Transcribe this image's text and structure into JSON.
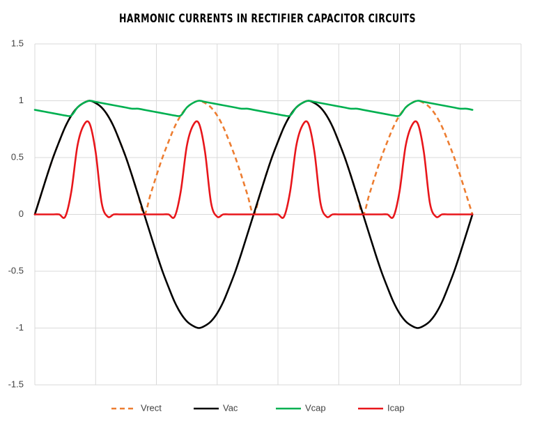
{
  "chart_data": {
    "type": "line",
    "title": "HARMONIC CURRENTS IN RECTIFIER CAPACITOR CIRCUITS",
    "x": [
      0,
      10,
      20,
      30,
      40,
      50,
      60,
      70,
      80,
      90,
      100,
      110,
      120,
      130,
      140,
      150,
      160,
      170,
      180,
      190,
      200,
      210,
      220,
      230,
      240,
      250,
      260,
      270,
      280,
      290,
      300,
      310,
      320,
      330,
      340,
      350,
      360,
      370,
      380,
      390,
      400,
      410,
      420,
      430,
      440,
      450,
      460,
      470,
      480,
      490,
      500,
      510,
      520,
      530,
      540,
      550,
      560,
      570,
      580,
      590,
      600,
      610,
      620,
      630,
      640,
      650,
      660,
      670,
      680,
      690,
      700,
      710,
      720
    ],
    "xlim": [
      0,
      800
    ],
    "xgrid": [
      0,
      100,
      200,
      300,
      400,
      500,
      600,
      700,
      800
    ],
    "ylim": [
      -1.5,
      1.5
    ],
    "yticks": [
      -1.5,
      -1,
      -0.5,
      0,
      0.5,
      1,
      1.5
    ],
    "grid": true,
    "legend": "bottom",
    "series": [
      {
        "name": "Vrect",
        "color": "#ed7d31",
        "dashed": true,
        "values": [
          0,
          0.17,
          0.34,
          0.5,
          0.64,
          0.77,
          0.87,
          0.94,
          0.98,
          1,
          0.98,
          0.94,
          0.87,
          0.77,
          0.64,
          0.5,
          0.34,
          0.17,
          0,
          0.17,
          0.34,
          0.5,
          0.64,
          0.77,
          0.87,
          0.94,
          0.98,
          1,
          0.98,
          0.94,
          0.87,
          0.77,
          0.64,
          0.5,
          0.34,
          0.17,
          0,
          0.17,
          0.34,
          0.5,
          0.64,
          0.77,
          0.87,
          0.94,
          0.98,
          1,
          0.98,
          0.94,
          0.87,
          0.77,
          0.64,
          0.5,
          0.34,
          0.17,
          0,
          0.17,
          0.34,
          0.5,
          0.64,
          0.77,
          0.87,
          0.94,
          0.98,
          1,
          0.98,
          0.94,
          0.87,
          0.77,
          0.64,
          0.5,
          0.34,
          0.17,
          0
        ]
      },
      {
        "name": "Vac",
        "color": "#000000",
        "values": [
          0,
          0.17,
          0.34,
          0.5,
          0.64,
          0.77,
          0.87,
          0.94,
          0.98,
          1,
          0.98,
          0.94,
          0.87,
          0.77,
          0.64,
          0.5,
          0.34,
          0.17,
          0,
          -0.17,
          -0.34,
          -0.5,
          -0.64,
          -0.77,
          -0.87,
          -0.94,
          -0.98,
          -1,
          -0.98,
          -0.94,
          -0.87,
          -0.77,
          -0.64,
          -0.5,
          -0.34,
          -0.17,
          0,
          0.17,
          0.34,
          0.5,
          0.64,
          0.77,
          0.87,
          0.94,
          0.98,
          1,
          0.98,
          0.94,
          0.87,
          0.77,
          0.64,
          0.5,
          0.34,
          0.17,
          0,
          -0.17,
          -0.34,
          -0.5,
          -0.64,
          -0.77,
          -0.87,
          -0.94,
          -0.98,
          -1,
          -0.98,
          -0.94,
          -0.87,
          -0.77,
          -0.64,
          -0.5,
          -0.34,
          -0.17,
          0
        ]
      },
      {
        "name": "Vcap",
        "color": "#00b050",
        "values": [
          0.92,
          0.91,
          0.9,
          0.89,
          0.88,
          0.87,
          0.87,
          0.94,
          0.98,
          1,
          0.99,
          0.98,
          0.97,
          0.96,
          0.95,
          0.94,
          0.93,
          0.93,
          0.92,
          0.91,
          0.9,
          0.89,
          0.88,
          0.87,
          0.87,
          0.94,
          0.98,
          1,
          0.99,
          0.98,
          0.97,
          0.96,
          0.95,
          0.94,
          0.93,
          0.93,
          0.92,
          0.91,
          0.9,
          0.89,
          0.88,
          0.87,
          0.87,
          0.94,
          0.98,
          1,
          0.99,
          0.98,
          0.97,
          0.96,
          0.95,
          0.94,
          0.93,
          0.93,
          0.92,
          0.91,
          0.9,
          0.89,
          0.88,
          0.87,
          0.87,
          0.94,
          0.98,
          1,
          0.99,
          0.98,
          0.97,
          0.96,
          0.95,
          0.94,
          0.93,
          0.93,
          0.92
        ]
      },
      {
        "name": "Icap",
        "color": "#e8161b",
        "values": [
          0,
          0,
          0,
          0,
          0,
          -0.02,
          0.2,
          0.6,
          0.78,
          0.8,
          0.55,
          0.1,
          -0.02,
          0,
          0,
          0,
          0,
          0,
          0,
          0,
          0,
          0,
          0,
          -0.02,
          0.2,
          0.6,
          0.78,
          0.8,
          0.55,
          0.1,
          -0.02,
          0,
          0,
          0,
          0,
          0,
          0,
          0,
          0,
          0,
          0,
          -0.02,
          0.2,
          0.6,
          0.78,
          0.8,
          0.55,
          0.1,
          -0.02,
          0,
          0,
          0,
          0,
          0,
          0,
          0,
          0,
          0,
          0,
          -0.02,
          0.2,
          0.6,
          0.78,
          0.8,
          0.55,
          0.1,
          -0.02,
          0,
          0,
          0,
          0,
          0,
          0
        ]
      }
    ]
  }
}
